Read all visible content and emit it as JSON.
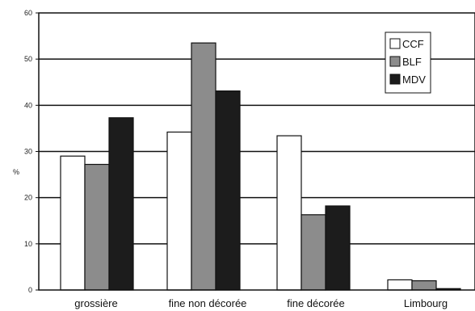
{
  "chart_data": {
    "type": "bar",
    "categories": [
      "grossière",
      "fine non décorée",
      "fine décorée",
      "Limbourg"
    ],
    "series": [
      {
        "name": "CCF",
        "values": [
          29,
          34.2,
          33.4,
          2.2
        ],
        "color": "#ffffff"
      },
      {
        "name": "BLF",
        "values": [
          27.2,
          53.5,
          16.3,
          2.0
        ],
        "color": "#8c8c8c"
      },
      {
        "name": "MDV",
        "values": [
          37.3,
          43.1,
          18.2,
          0.3
        ],
        "color": "#1c1c1c"
      }
    ],
    "title": "",
    "xlabel": "",
    "ylabel": "%",
    "ylim": [
      0,
      60
    ],
    "yticks": [
      0,
      10,
      20,
      30,
      40,
      50,
      60
    ],
    "grid": "horizontal",
    "legend_position": "top-right"
  }
}
